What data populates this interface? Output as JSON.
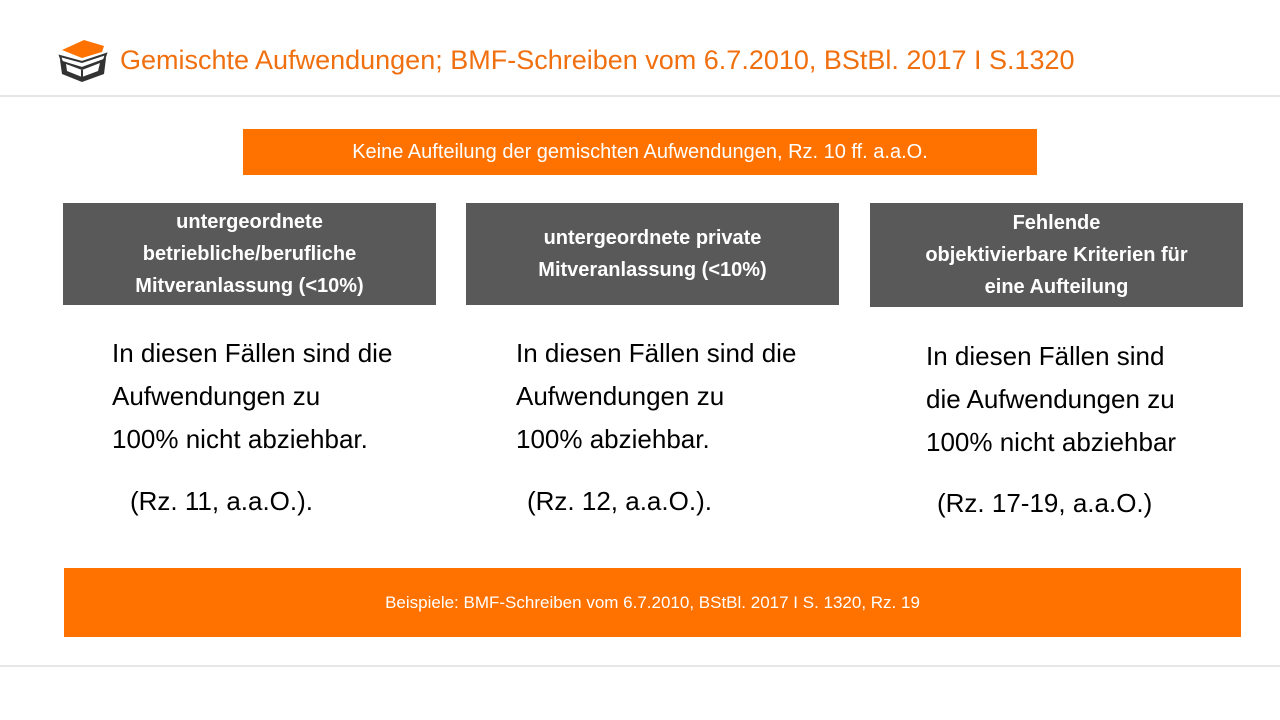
{
  "header": {
    "title": "Gemischte Aufwendungen; BMF-Schreiben vom 6.7.2010, BStBl. 2017 I S.1320",
    "logo_icon": "graduation-cap-book-icon"
  },
  "subtitle": "Keine Aufteilung der gemischten Aufwendungen, Rz. 10 ff. a.a.O.",
  "columns": [
    {
      "heading": [
        "untergeordnete",
        "betriebliche/berufliche",
        "Mitveranlassung (<10%)"
      ],
      "body": [
        "In diesen Fällen sind die",
        "Aufwendungen zu",
        "100% nicht abziehbar."
      ],
      "reference": "(Rz. 11, a.a.O.)."
    },
    {
      "heading": [
        "untergeordnete private",
        "Mitveranlassung (<10%)"
      ],
      "body": [
        "In diesen Fällen sind die",
        "Aufwendungen zu",
        "100% abziehbar."
      ],
      "reference": "(Rz. 12, a.a.O.)."
    },
    {
      "heading": [
        "Fehlende",
        "objektivierbare Kriterien für",
        "eine Aufteilung"
      ],
      "body": [
        "In diesen Fällen sind",
        "die Aufwendungen zu",
        "100% nicht abziehbar"
      ],
      "reference": "(Rz. 17-19, a.a.O.)"
    }
  ],
  "footer": "Beispiele: BMF-Schreiben vom 6.7.2010, BStBl. 2017 I S. 1320, Rz. 19",
  "colors": {
    "accent": "#ff7200",
    "title": "#f07010",
    "heading_bg": "#595959"
  }
}
